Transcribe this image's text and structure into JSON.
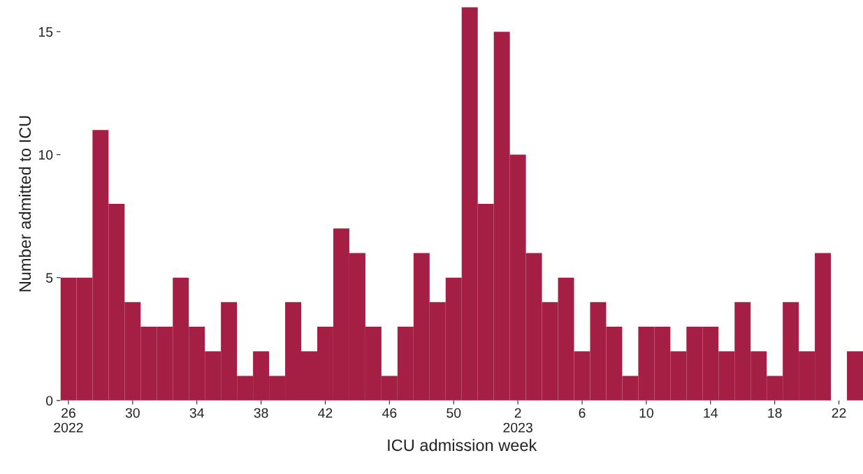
{
  "chart_data": {
    "type": "bar",
    "xlabel": "ICU admission week",
    "ylabel": "Number admitted to ICU",
    "categories": [
      "26\n2022",
      null,
      null,
      null,
      "30",
      null,
      null,
      null,
      "34",
      null,
      null,
      null,
      "38",
      null,
      null,
      null,
      "42",
      null,
      null,
      null,
      "46",
      null,
      null,
      null,
      "50",
      null,
      null,
      null,
      "2\n2023",
      null,
      null,
      null,
      "6",
      null,
      null,
      null,
      "10",
      null,
      null,
      null,
      "14",
      null,
      null,
      null,
      "18",
      null,
      null,
      null,
      "22",
      null
    ],
    "values": [
      5,
      5,
      11,
      8,
      4,
      3,
      3,
      5,
      3,
      2,
      4,
      1,
      2,
      1,
      4,
      2,
      3,
      7,
      6,
      3,
      1,
      3,
      6,
      4,
      5,
      16,
      8,
      15,
      10,
      6,
      4,
      5,
      2,
      4,
      3,
      1,
      3,
      3,
      2,
      3,
      3,
      2,
      4,
      2,
      1,
      4,
      2,
      6,
      0,
      2
    ],
    "color": "#a51f45",
    "ylim": [
      0,
      16
    ],
    "yticks": [
      0,
      5,
      10,
      15
    ],
    "grid": false,
    "legend": false
  }
}
